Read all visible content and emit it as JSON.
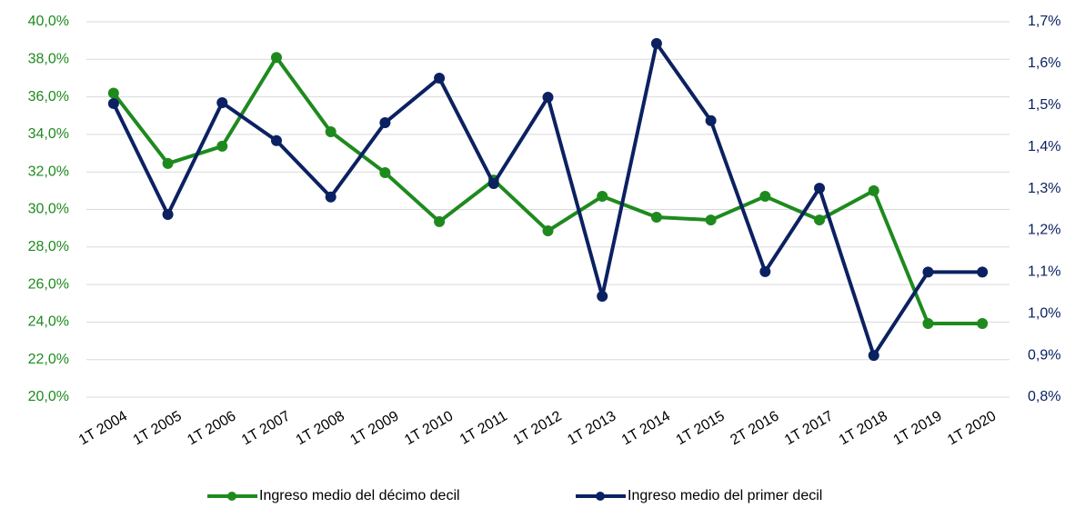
{
  "chart_data": {
    "type": "line",
    "categories": [
      "1T 2004",
      "1T 2005",
      "1T 2006",
      "1T 2007",
      "1T 2008",
      "1T 2009",
      "1T 2010",
      "1T 2011",
      "1T 2012",
      "1T 2013",
      "1T 2014",
      "1T 2015",
      "2T 2016",
      "1T 2017",
      "1T 2018",
      "1T 2019",
      "1T 2020"
    ],
    "series": [
      {
        "name": "Ingreso medio del décimo decil",
        "color": "#1e8a1e",
        "values": [
          36.2,
          32.45,
          33.37,
          38.1,
          34.14,
          31.96,
          29.35,
          31.57,
          28.86,
          30.7,
          29.59,
          29.44,
          30.7,
          29.44,
          31.0,
          23.92,
          23.92
        ]
      },
      {
        "name": "Ingreso medio del primer decil",
        "color": "#0b2161",
        "axis": "y2",
        "values": [
          1.504,
          1.238,
          1.506,
          1.415,
          1.28,
          1.458,
          1.565,
          1.312,
          1.519,
          1.042,
          1.648,
          1.463,
          1.101,
          1.301,
          0.9,
          1.1,
          1.1
        ]
      }
    ],
    "ylim": [
      20,
      40
    ],
    "yticks": [
      {
        "value": 20,
        "label": "20,0%"
      },
      {
        "value": 22,
        "label": "22,0%"
      },
      {
        "value": 24,
        "label": "24,0%"
      },
      {
        "value": 26,
        "label": "26,0%"
      },
      {
        "value": 28,
        "label": "28,0%"
      },
      {
        "value": 30,
        "label": "30,0%"
      },
      {
        "value": 32,
        "label": "32,0%"
      },
      {
        "value": 34,
        "label": "34,0%"
      },
      {
        "value": 36,
        "label": "36,0%"
      },
      {
        "value": 38,
        "label": "38,0%"
      },
      {
        "value": 40,
        "label": "40,0%"
      }
    ],
    "y2lim": [
      0.8,
      1.7
    ],
    "y2ticks": [
      {
        "value": 0.8,
        "label": "0,8%"
      },
      {
        "value": 0.9,
        "label": "0,9%"
      },
      {
        "value": 1.0,
        "label": "1,0%"
      },
      {
        "value": 1.1,
        "label": "1,1%"
      },
      {
        "value": 1.2,
        "label": "1,2%"
      },
      {
        "value": 1.3,
        "label": "1,3%"
      },
      {
        "value": 1.4,
        "label": "1,4%"
      },
      {
        "value": 1.5,
        "label": "1,5%"
      },
      {
        "value": 1.6,
        "label": "1,6%"
      },
      {
        "value": 1.7,
        "label": "1,7%"
      }
    ],
    "grid": true,
    "legend": "bottom"
  }
}
